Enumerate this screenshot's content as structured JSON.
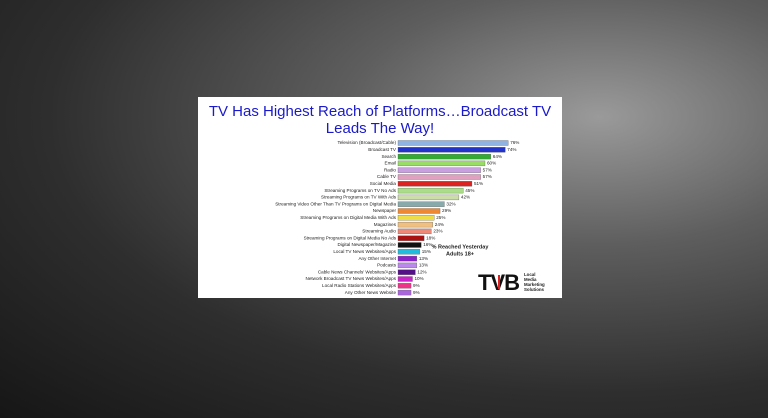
{
  "chart_data": {
    "type": "bar",
    "orientation": "horizontal",
    "title": "TV Has Highest Reach of Platforms…Broadcast TV Leads The Way!",
    "categories": [
      "Television (Broadcast/Cable)",
      "Broadcast TV",
      "Search",
      "Email",
      "Radio",
      "Cable TV",
      "Social Media",
      "Streaming Programs on TV No Ads",
      "Streaming Programs on TV With Ads",
      "Streaming Video Other Than TV Programs on Digital Media",
      "Newspaper",
      "Streaming Programs on Digital Media With Ads",
      "Magazines",
      "Streaming Audio",
      "Streaming Programs on Digital Media No Ads",
      "Digital Newspaper/Magazine",
      "Local TV News Websites/Apps",
      "Any Other Internet",
      "Podcasts",
      "Cable News Channels' Websites/Apps",
      "Network Broadcast TV News Websites/Apps",
      "Local Radio Stations Websites/Apps",
      "Any Other News Website"
    ],
    "values": [
      76,
      74,
      64,
      60,
      57,
      57,
      51,
      45,
      42,
      32,
      29,
      25,
      24,
      23,
      18,
      16,
      15,
      13,
      13,
      12,
      10,
      9,
      9
    ],
    "value_labels": [
      "76%",
      "74%",
      "64%",
      "60%",
      "57%",
      "57%",
      "51%",
      "45%",
      "42%",
      "32%",
      "29%",
      "25%",
      "24%",
      "23%",
      "18%",
      "16%",
      "15%",
      "13%",
      "13%",
      "12%",
      "10%",
      "9%",
      "9%"
    ],
    "colors": [
      "#8fb4e3",
      "#2233cc",
      "#33aa33",
      "#99dd66",
      "#c8a0e0",
      "#e0a0c0",
      "#dd2222",
      "#aadd88",
      "#ccddaa",
      "#88aaaa",
      "#ee8833",
      "#eedd44",
      "#f0c080",
      "#ee8877",
      "#aa1111",
      "#111111",
      "#22bbdd",
      "#8822cc",
      "#bb88ee",
      "#551188",
      "#cc22cc",
      "#ee3388",
      "#aa66dd"
    ],
    "xlim": [
      0,
      100
    ],
    "annotation": [
      "% Reached Yesterday",
      "Adults 18+"
    ],
    "logo": {
      "text": "TVB",
      "tagline": [
        "Local",
        "Media",
        "Marketing",
        "Solutions"
      ]
    }
  }
}
